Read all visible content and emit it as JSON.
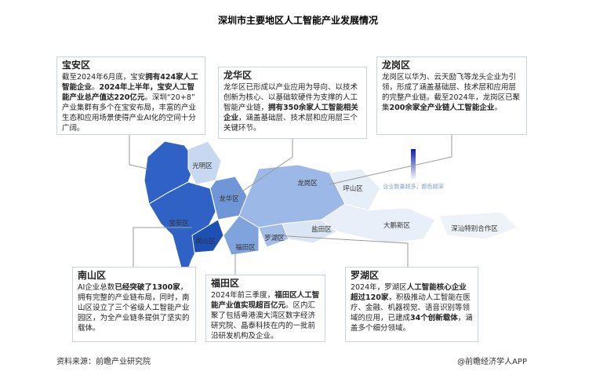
{
  "title": "深圳市主要地区人工智能产业发展情况",
  "panels": [
    {
      "name": "宝安区",
      "segments": [
        {
          "text": "截至2024年6月底，宝安",
          "bold": false
        },
        {
          "text": "拥有424家人工智能企业",
          "bold": true
        },
        {
          "text": "。",
          "bold": false
        },
        {
          "text": "2024年上半年，宝安人工智能产业总产值达220亿元",
          "bold": true
        },
        {
          "text": "。深圳“20+8”产业集群有多个在宝安布局，丰富的产业生态和应用场景使得产业AI化的空间十分广阔。",
          "bold": false
        }
      ]
    },
    {
      "name": "龙华区",
      "segments": [
        {
          "text": "龙华区已形成以产业应用为导向、以技术创新为核心、以基础软硬件为支撑的人工智能产业链，",
          "bold": false
        },
        {
          "text": "拥有350余家人工智能相关企业",
          "bold": true
        },
        {
          "text": "，涵盖基础层、技术层和应用层三个关键环节。",
          "bold": false
        }
      ]
    },
    {
      "name": "龙岗区",
      "segments": [
        {
          "text": "龙岗区以华为、云天励飞等龙头企业为引领，形成了涵盖基础层、技术层和应用层的完整产业链。截至2024年，龙岗区已聚集",
          "bold": false
        },
        {
          "text": "200余家全产业链人工智能企业",
          "bold": true
        },
        {
          "text": "。",
          "bold": false
        }
      ]
    },
    {
      "name": "南山区",
      "segments": [
        {
          "text": "AI企业总数",
          "bold": false
        },
        {
          "text": "已经突破了1300家",
          "bold": true
        },
        {
          "text": "，拥有完整的产业链布局，同时，南山区设立了三个省级人工智能产业园区，为全产业链条提供了坚实的载体。",
          "bold": false
        }
      ]
    },
    {
      "name": "福田区",
      "segments": [
        {
          "text": "2024年前三季度，",
          "bold": false
        },
        {
          "text": "福田区人工智能产业值实现超百亿元",
          "bold": true
        },
        {
          "text": "。区内汇聚了包括粤港澳大湾区数字经济研究院、晶泰科技在内的一批前沿研发机构及企业。",
          "bold": false
        }
      ]
    },
    {
      "name": "罗湖区",
      "segments": [
        {
          "text": "2024年，罗湖区",
          "bold": false
        },
        {
          "text": "人工智能核心企业超过120家",
          "bold": true
        },
        {
          "text": "，积极推动人工智能在医疗、金融、机器视觉、语音识别等领域的应用，已建成",
          "bold": false
        },
        {
          "text": "34个创新载体",
          "bold": true
        },
        {
          "text": "，涵盖多个细分领域。",
          "bold": false
        }
      ]
    }
  ],
  "map_labels": [
    "光明区",
    "龙华区",
    "宝安区",
    "南山区",
    "福田区",
    "罗湖区",
    "盐田区",
    "龙岗区",
    "坪山区",
    "大鹏新区",
    "深汕特别合作区"
  ],
  "legend": "企业数量越多，颜色越深",
  "source": "资料来源：前瞻产业研究院",
  "brand": "@前瞻经济学人APP"
}
